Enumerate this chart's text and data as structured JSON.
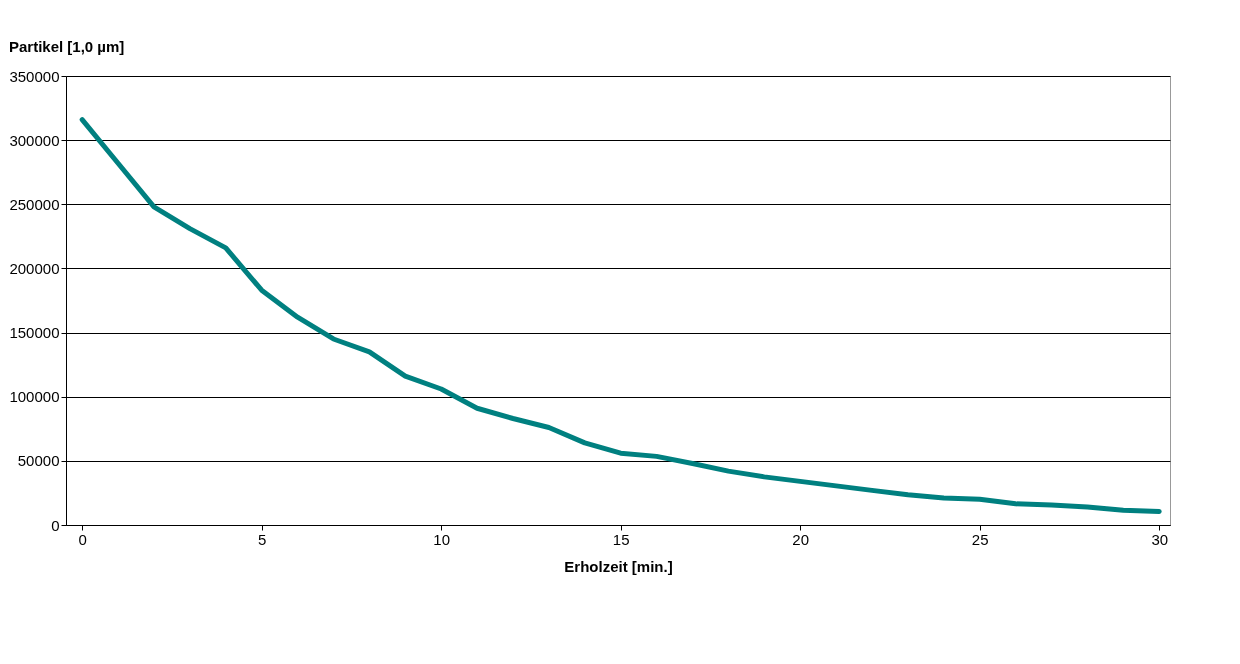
{
  "chart_data": {
    "type": "line",
    "ylabel": "Partikel [1,0 µm]",
    "xlabel": "Erholzeit [min.]",
    "x": [
      0,
      1,
      2,
      3,
      4,
      5,
      6,
      7,
      8,
      9,
      10,
      11,
      12,
      13,
      14,
      15,
      16,
      17,
      18,
      19,
      20,
      21,
      22,
      23,
      24,
      25,
      26,
      27,
      28,
      29,
      30
    ],
    "series": [
      {
        "color": "#008080",
        "values": [
          316000,
          282000,
          248000,
          231000,
          216000,
          183000,
          162000,
          145000,
          135000,
          116000,
          106000,
          91000,
          83000,
          76000,
          64000,
          56000,
          53500,
          48000,
          42000,
          37500,
          34000,
          30500,
          27000,
          23500,
          21000,
          20000,
          16500,
          15500,
          14000,
          11500,
          10500
        ]
      }
    ],
    "xlim": [
      -0.45,
      30.3
    ],
    "xticks": [
      0,
      5,
      10,
      15,
      20,
      25,
      30
    ],
    "ylim": [
      0,
      350000
    ],
    "yticks": [
      0,
      50000,
      100000,
      150000,
      200000,
      250000,
      300000,
      350000
    ],
    "grid": "y",
    "legend": false,
    "marker": "none",
    "line_style": "solid"
  }
}
